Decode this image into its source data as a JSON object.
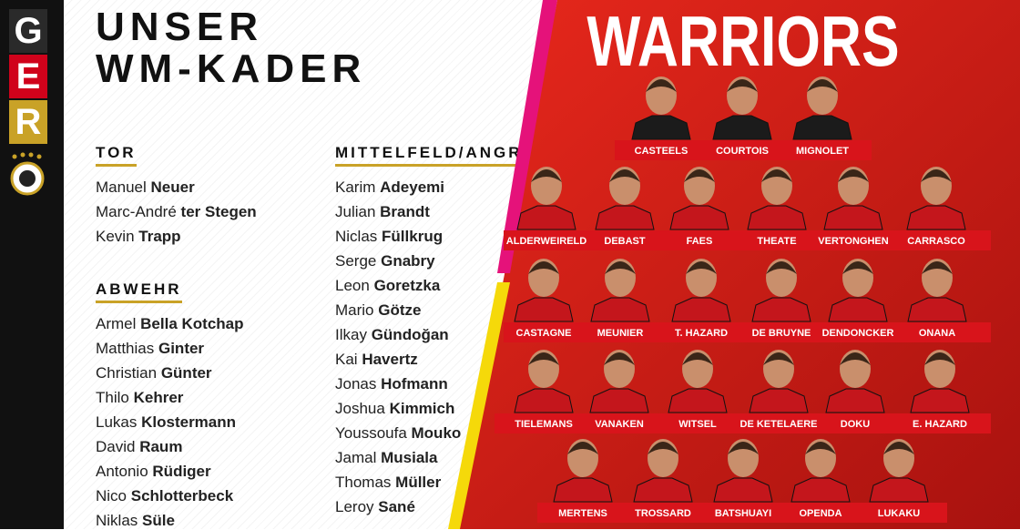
{
  "badge": {
    "letters": [
      "G",
      "E",
      "R"
    ]
  },
  "header": {
    "title_lines": [
      "UNSER",
      "WM-KADER"
    ]
  },
  "sections": [
    {
      "title": "TOR",
      "players": [
        {
          "first": "Manuel",
          "last": "Neuer"
        },
        {
          "first": "Marc-André",
          "last": "ter Stegen"
        },
        {
          "first": "Kevin",
          "last": "Trapp"
        }
      ]
    },
    {
      "title": "ABWEHR",
      "players": [
        {
          "first": "Armel",
          "last": "Bella Kotchap"
        },
        {
          "first": "Matthias",
          "last": "Ginter"
        },
        {
          "first": "Christian",
          "last": "Günter"
        },
        {
          "first": "Thilo",
          "last": "Kehrer"
        },
        {
          "first": "Lukas",
          "last": "Klostermann"
        },
        {
          "first": "David",
          "last": "Raum"
        },
        {
          "first": "Antonio",
          "last": "Rüdiger"
        },
        {
          "first": "Nico",
          "last": "Schlotterbeck"
        },
        {
          "first": "Niklas",
          "last": "Süle"
        }
      ]
    },
    {
      "title": "MITTELFELD/ANGR",
      "players": [
        {
          "first": "Karim",
          "last": "Adeyemi"
        },
        {
          "first": "Julian",
          "last": "Brandt"
        },
        {
          "first": "Niclas",
          "last": "Füllkrug"
        },
        {
          "first": "Serge",
          "last": "Gnabry"
        },
        {
          "first": "Leon",
          "last": "Goretzka"
        },
        {
          "first": "Mario",
          "last": "Götze"
        },
        {
          "first": "Ilkay",
          "last": "Gündoğan"
        },
        {
          "first": "Kai",
          "last": "Havertz"
        },
        {
          "first": "Jonas",
          "last": "Hofmann"
        },
        {
          "first": "Joshua",
          "last": "Kimmich"
        },
        {
          "first": "Youssoufa",
          "last": "Mouko"
        },
        {
          "first": "Jamal",
          "last": "Musiala"
        },
        {
          "first": "Thomas",
          "last": "Müller"
        },
        {
          "first": "Leroy",
          "last": "Sané"
        }
      ]
    }
  ],
  "belgium": {
    "title": "WARRIORS",
    "rows": [
      [
        "CASTEELS",
        "COURTOIS",
        "MIGNOLET"
      ],
      [
        "ALDERWEIRELD",
        "DEBAST",
        "FAES",
        "THEATE",
        "VERTONGHEN",
        "CARRASCO"
      ],
      [
        "CASTAGNE",
        "MEUNIER",
        "T. HAZARD",
        "DE BRUYNE",
        "DENDONCKER",
        "ONANA"
      ],
      [
        "TIELEMANS",
        "VANAKEN",
        "WITSEL",
        "DE KETELAERE",
        "DOKU",
        "E. HAZARD"
      ],
      [
        "MERTENS",
        "TROSSARD",
        "BATSHUAYI",
        "OPENDA",
        "LUKAKU"
      ]
    ]
  }
}
